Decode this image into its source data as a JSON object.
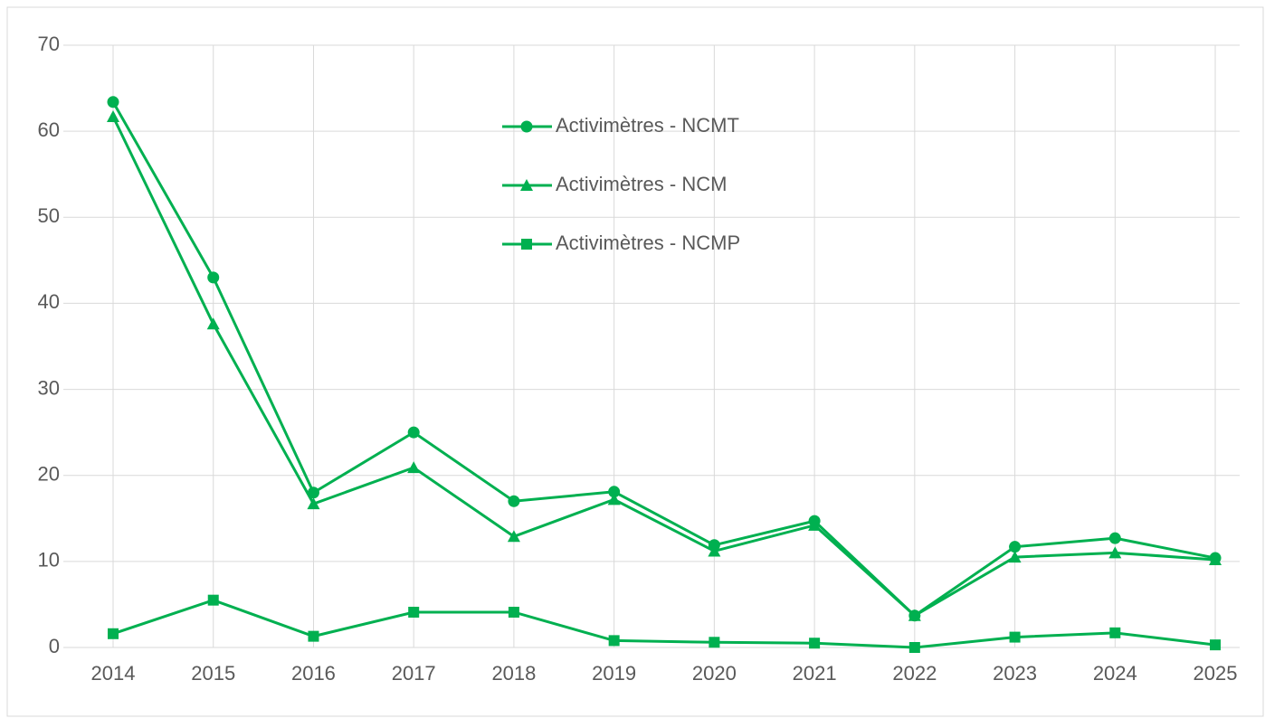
{
  "chart_data": {
    "type": "line",
    "categories": [
      "2014",
      "2015",
      "2016",
      "2017",
      "2018",
      "2019",
      "2020",
      "2021",
      "2022",
      "2023",
      "2024",
      "2025"
    ],
    "series": [
      {
        "name": "Activimètres - NCMT",
        "color": "#00b050",
        "marker": "circle",
        "values": [
          63.4,
          43.0,
          18.0,
          25.0,
          17.0,
          18.1,
          11.9,
          14.7,
          3.7,
          11.7,
          12.7,
          10.4
        ]
      },
      {
        "name": "Activimètres - NCM",
        "color": "#00b050",
        "marker": "triangle",
        "values": [
          61.7,
          37.6,
          16.7,
          20.9,
          12.9,
          17.2,
          11.2,
          14.2,
          3.7,
          10.5,
          11.0,
          10.2
        ]
      },
      {
        "name": "Activimètres - NCMP",
        "color": "#00b050",
        "marker": "square",
        "values": [
          1.6,
          5.5,
          1.3,
          4.1,
          4.1,
          0.8,
          0.6,
          0.5,
          0,
          1.2,
          1.7,
          0.3
        ]
      }
    ],
    "ylim": [
      0,
      70
    ],
    "yticks": [
      0,
      10,
      20,
      30,
      40,
      50,
      60,
      70
    ],
    "grid": true
  }
}
